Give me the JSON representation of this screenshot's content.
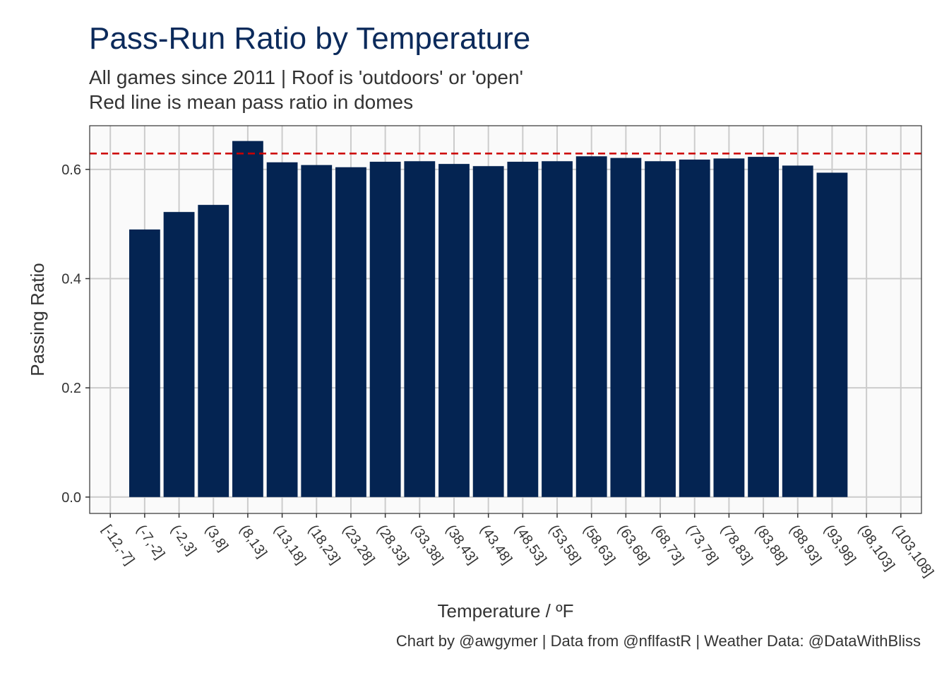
{
  "title": "Pass-Run Ratio by Temperature",
  "subtitle_line1": "All games since 2011 | Roof is 'outdoors' or 'open'",
  "subtitle_line2": "Red line is mean pass ratio in domes",
  "caption": "Chart by @awgymer | Data from @nflfastR | Weather Data: @DataWithBliss",
  "colors": {
    "bar": "#042452",
    "reference_line": "#cc0000",
    "panel_background": "#fafafa",
    "grid": "#cccccc",
    "text": "#333333",
    "title": "#0b2a5b"
  },
  "chart_data": {
    "type": "bar",
    "title": "Pass-Run Ratio by Temperature",
    "xlabel": "Temperature / ºF",
    "ylabel": "Passing Ratio",
    "ylim": [
      -0.03,
      0.68
    ],
    "yticks": [
      0.0,
      0.2,
      0.4,
      0.6
    ],
    "ytick_labels": [
      "0.0",
      "0.2",
      "0.4",
      "0.6"
    ],
    "grid": true,
    "categories": [
      "[-12,-7]",
      "(-7,-2]",
      "(-2,3]",
      "(3,8]",
      "(8,13]",
      "(13,18]",
      "(18,23]",
      "(23,28]",
      "(28,33]",
      "(33,38]",
      "(38,43]",
      "(43,48]",
      "(48,53]",
      "(53,58]",
      "(58,63]",
      "(63,68]",
      "(68,73]",
      "(73,78]",
      "(78,83]",
      "(83,88]",
      "(88,93]",
      "(93,98]",
      "(98,103]",
      "(103,108]"
    ],
    "values": [
      null,
      0.49,
      0.522,
      0.535,
      0.652,
      0.613,
      0.608,
      0.604,
      0.614,
      0.615,
      0.61,
      0.606,
      0.614,
      0.615,
      0.624,
      0.621,
      0.615,
      0.618,
      0.62,
      0.623,
      0.607,
      0.594,
      null,
      null
    ],
    "reference_line": {
      "y": 0.629
    }
  }
}
